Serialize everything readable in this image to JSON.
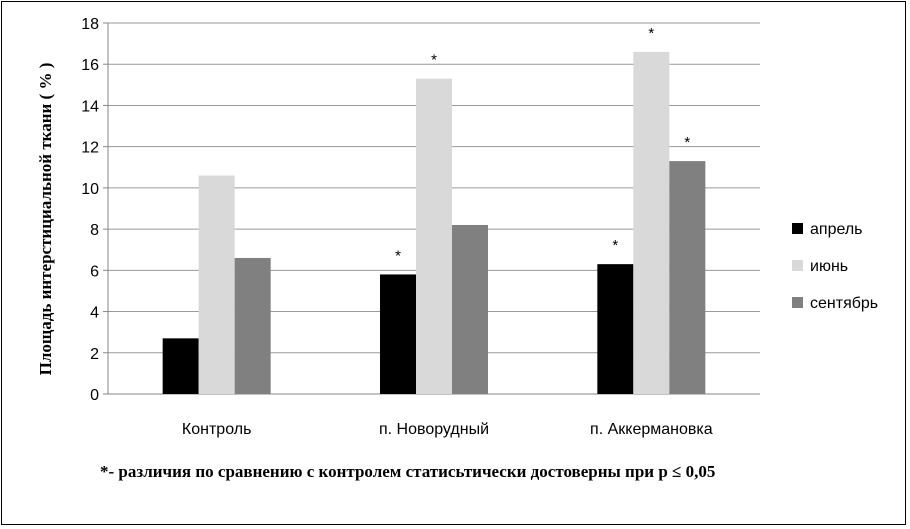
{
  "chart_data": {
    "type": "bar",
    "categories": [
      "Контроль",
      "п. Новорудный",
      "п. Аккермановка"
    ],
    "series": [
      {
        "name": "апрель",
        "values": [
          2.7,
          5.8,
          6.3
        ],
        "color": "#000000",
        "significant": [
          false,
          true,
          true
        ]
      },
      {
        "name": "июнь",
        "values": [
          10.6,
          15.3,
          16.6
        ],
        "color": "#d9d9d9",
        "significant": [
          false,
          true,
          true
        ]
      },
      {
        "name": "сентябрь",
        "values": [
          6.6,
          8.2,
          11.3
        ],
        "color": "#808080",
        "significant": [
          false,
          false,
          true
        ]
      }
    ],
    "ylabel": "Площадь интерстициальной ткани ( % )",
    "ylim": [
      0,
      18
    ],
    "yticks": [
      0,
      2,
      4,
      6,
      8,
      10,
      12,
      14,
      16,
      18
    ],
    "grid": true,
    "legend_position": "right",
    "significance_marker": "*"
  },
  "footnote": "*- различия по сравнению с контролем статисьтически достоверны при р ≤ 0,05"
}
